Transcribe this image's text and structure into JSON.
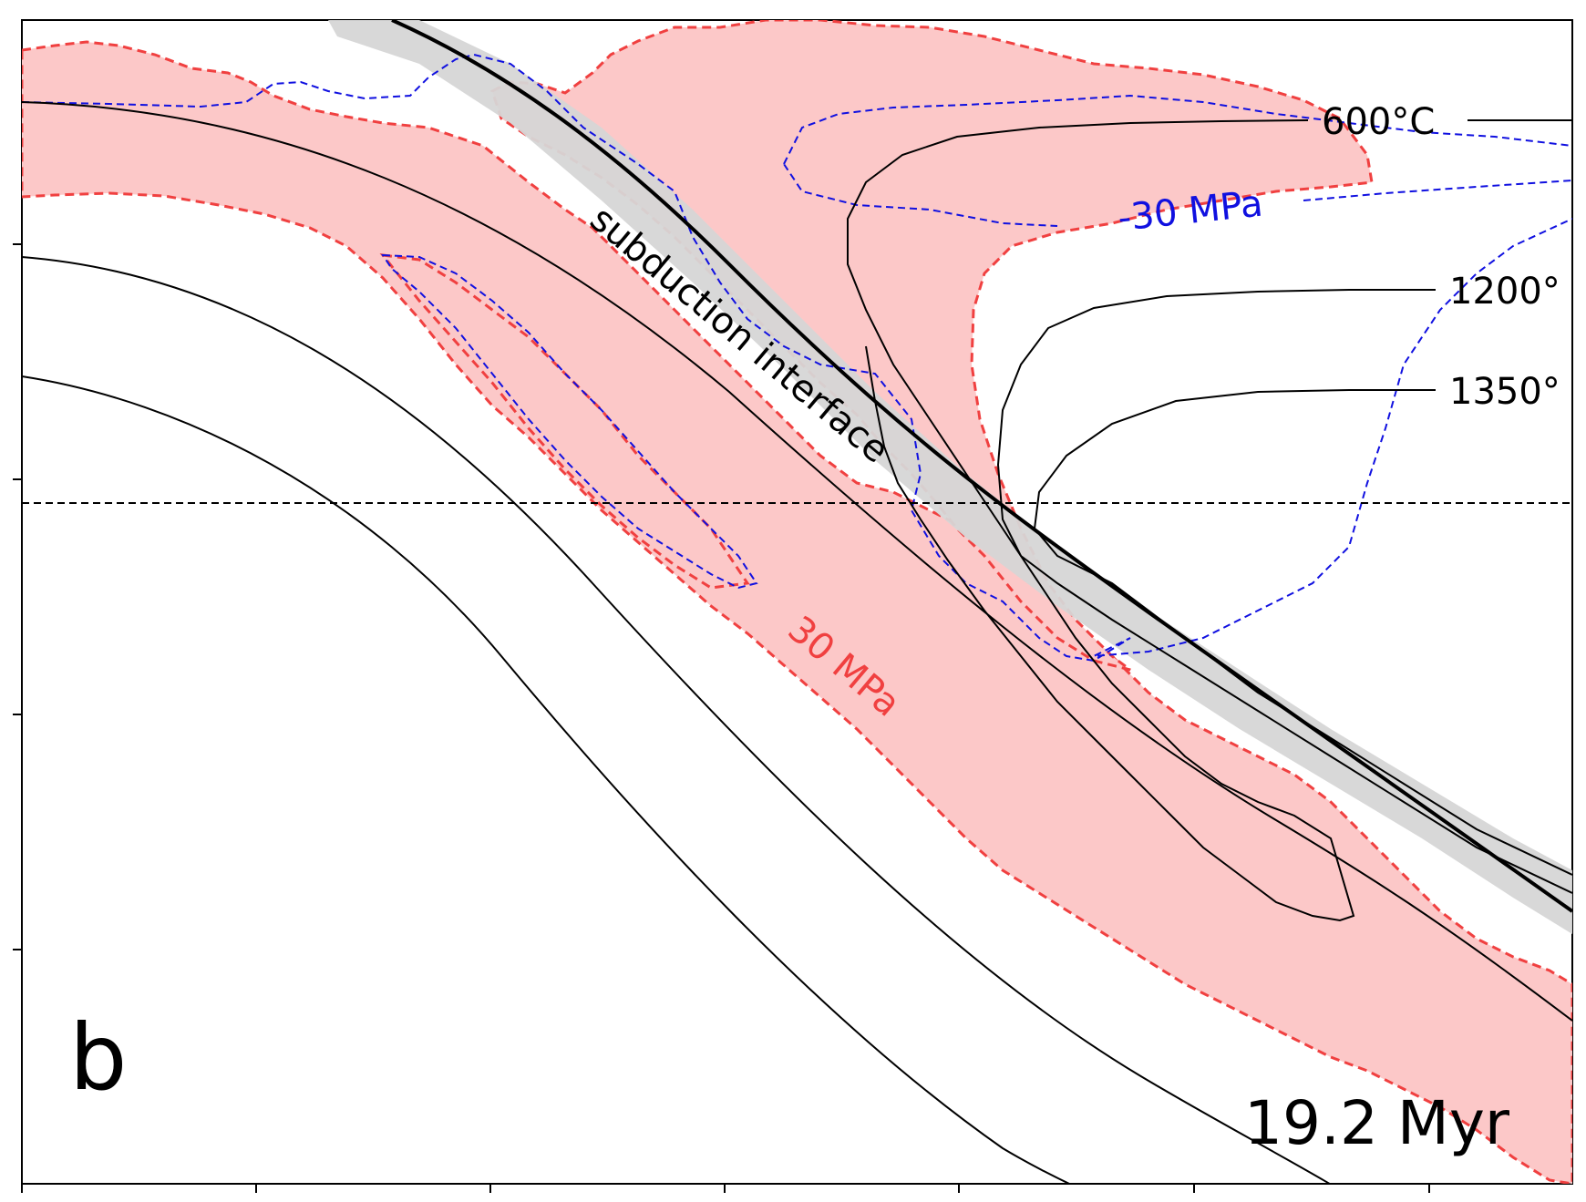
{
  "panel_label": "b",
  "time_label": "19.2 Myr",
  "annotations": {
    "interface": "subduction interface",
    "stress_pos": "30 MPa",
    "stress_neg": "-30 MPa"
  },
  "isotherms": [
    {
      "label": "600°C"
    },
    {
      "label": "1200°"
    },
    {
      "label": "1350°"
    }
  ],
  "colors": {
    "stress_fill": "#fcc8c8",
    "stress_pos_line": "#f04040",
    "stress_neg_line": "#1010e0",
    "interface_band": "#d6d6d6",
    "line": "#000000"
  }
}
